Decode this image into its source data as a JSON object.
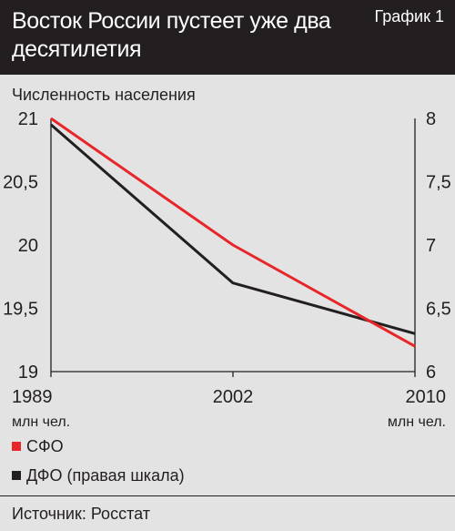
{
  "header": {
    "title": "Восток России пустеет уже два десятилетия",
    "chart_label": "График 1"
  },
  "colors": {
    "sfo": "#e8262a",
    "dfo": "#231f20"
  },
  "source": "Источник: Росстат",
  "chart_data": {
    "type": "line",
    "ylabel": "Численность населения",
    "x": [
      "1989",
      "2002",
      "2010"
    ],
    "left_axis": {
      "ticks": [
        "21",
        "20,5",
        "20",
        "19,5",
        "19"
      ],
      "values": [
        21,
        20.5,
        20,
        19.5,
        19
      ],
      "unit": "млн чел.",
      "ylim": [
        19,
        21
      ]
    },
    "right_axis": {
      "ticks": [
        "8",
        "7,5",
        "7",
        "6,5",
        "6"
      ],
      "values": [
        8,
        7.5,
        7,
        6.5,
        6
      ],
      "unit": "млн чел.",
      "ylim": [
        6,
        8
      ]
    },
    "series": [
      {
        "name": "СФО",
        "axis": "left",
        "color": "#e8262a",
        "values": [
          21.0,
          20.0,
          19.2
        ]
      },
      {
        "name": "ДФО (правая шкала)",
        "axis": "right",
        "color": "#231f20",
        "values": [
          7.95,
          6.7,
          6.3
        ]
      }
    ],
    "grid": false,
    "legend_position": "bottom-left"
  }
}
